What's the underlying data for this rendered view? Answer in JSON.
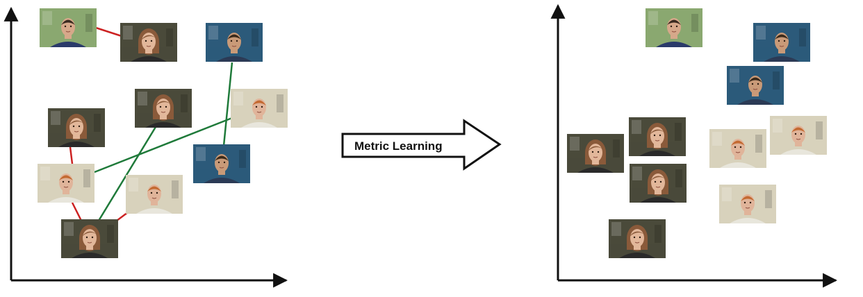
{
  "center_arrow": {
    "label": "Metric Learning"
  },
  "colors": {
    "axis": "#111111",
    "dissimilar_link": "#cc2222",
    "similar_link": "#1f7a3a",
    "arrow_fill": "#ffffff",
    "arrow_stroke": "#111111"
  },
  "photo_palette": {
    "man_a": {
      "bg": "#8aa870",
      "skin": "#d6a88a",
      "hair": "#3a2a20",
      "clothes": "#2a3a6a"
    },
    "man_b": {
      "bg": "#2c5a7a",
      "skin": "#c99a78",
      "hair": "#3b2a1a",
      "clothes": "#2b3a55"
    },
    "man_c": {
      "bg": "#d8d2bc",
      "skin": "#e0b49a",
      "hair": "#c46a32",
      "clothes": "#e8e6dc"
    },
    "woman": {
      "bg": "#4a4a3a",
      "skin": "#e2b79a",
      "hair": "#8a5a3a",
      "clothes": "#2a2a2a"
    }
  }
}
